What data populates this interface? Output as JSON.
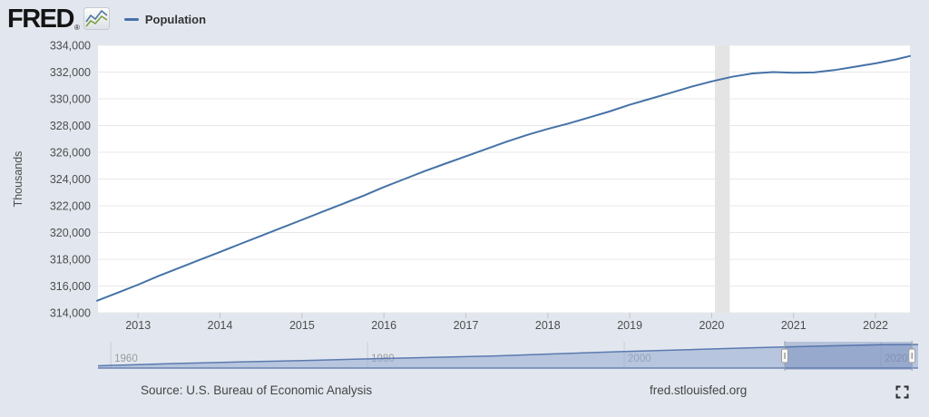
{
  "header": {
    "logo_text": "FRED",
    "registered_mark": "®",
    "legend": [
      {
        "label": "Population",
        "color": "#4572a7"
      }
    ]
  },
  "chart_data": {
    "type": "line",
    "title": "Population",
    "ylabel": "Thousands",
    "ylim": [
      314000,
      334000
    ],
    "yticks": [
      314000,
      316000,
      318000,
      320000,
      322000,
      324000,
      326000,
      328000,
      330000,
      332000,
      334000
    ],
    "xlim": [
      2012.51,
      2022.42
    ],
    "xticks": [
      2013,
      2014,
      2015,
      2016,
      2017,
      2018,
      2019,
      2020,
      2021,
      2022
    ],
    "grid": "horizontal-only",
    "legend_position": "top-left",
    "series": [
      {
        "name": "Population",
        "color": "#4572a7",
        "points": [
          [
            2012.5,
            314900
          ],
          [
            2012.75,
            315500
          ],
          [
            2013,
            316100
          ],
          [
            2013.25,
            316750
          ],
          [
            2013.5,
            317350
          ],
          [
            2013.75,
            317950
          ],
          [
            2014,
            318550
          ],
          [
            2014.25,
            319150
          ],
          [
            2014.5,
            319750
          ],
          [
            2014.75,
            320350
          ],
          [
            2015,
            320950
          ],
          [
            2015.25,
            321550
          ],
          [
            2015.5,
            322150
          ],
          [
            2015.75,
            322750
          ],
          [
            2016,
            323400
          ],
          [
            2016.25,
            324000
          ],
          [
            2016.5,
            324600
          ],
          [
            2016.75,
            325150
          ],
          [
            2017,
            325700
          ],
          [
            2017.25,
            326250
          ],
          [
            2017.5,
            326800
          ],
          [
            2017.75,
            327300
          ],
          [
            2018,
            327750
          ],
          [
            2018.25,
            328150
          ],
          [
            2018.5,
            328600
          ],
          [
            2018.75,
            329050
          ],
          [
            2019,
            329550
          ],
          [
            2019.25,
            330000
          ],
          [
            2019.5,
            330450
          ],
          [
            2019.75,
            330900
          ],
          [
            2020,
            331300
          ],
          [
            2020.25,
            331650
          ],
          [
            2020.5,
            331900
          ],
          [
            2020.75,
            332000
          ],
          [
            2021,
            331950
          ],
          [
            2021.25,
            331975
          ],
          [
            2021.5,
            332150
          ],
          [
            2021.75,
            332400
          ],
          [
            2022,
            332650
          ],
          [
            2022.25,
            332950
          ],
          [
            2022.42,
            333200
          ]
        ]
      }
    ],
    "recession_bands": [
      {
        "start": 2020.04,
        "end": 2020.22,
        "color": "#e4e4e4"
      }
    ],
    "navigator": {
      "domain": [
        1959,
        2022.9
      ],
      "selection": [
        2012.51,
        2022.42
      ],
      "tick_years": [
        1960,
        1980,
        2000,
        2020
      ],
      "tick_labels": [
        "1960",
        "1980",
        "2000",
        "2020"
      ],
      "value_display_range": [
        160000,
        333300
      ],
      "points": [
        [
          1959,
          176700
        ],
        [
          1965,
          193500
        ],
        [
          1970,
          204900
        ],
        [
          1975,
          215500
        ],
        [
          1980,
          227200
        ],
        [
          1985,
          237900
        ],
        [
          1990,
          249600
        ],
        [
          1995,
          266300
        ],
        [
          2000,
          282200
        ],
        [
          2005,
          295500
        ],
        [
          2010,
          309300
        ],
        [
          2015,
          320900
        ],
        [
          2020,
          331500
        ],
        [
          2022.9,
          333300
        ]
      ]
    }
  },
  "footer": {
    "source": "Source: U.S. Bureau of Economic Analysis",
    "site": "fred.stlouisfed.org"
  },
  "colors": {
    "page_bg": "#e2e7ef",
    "plot_bg": "#ffffff",
    "gridline": "#e8e8e8",
    "axis_text": "#4d4d4d",
    "tick_mark": "#c5c5c5",
    "line": "#4572a7",
    "recession_band": "#e4e4e4",
    "nav_fill": "#94a9cf",
    "nav_top_line": "#5b7ab0",
    "nav_baseline": "#6b83ae",
    "nav_selection_overlay": "rgba(79,106,164,0.30)",
    "nav_label": "#9b9b9b",
    "nav_handle_border": "#9b9b9b",
    "footer_text": "#454545"
  }
}
